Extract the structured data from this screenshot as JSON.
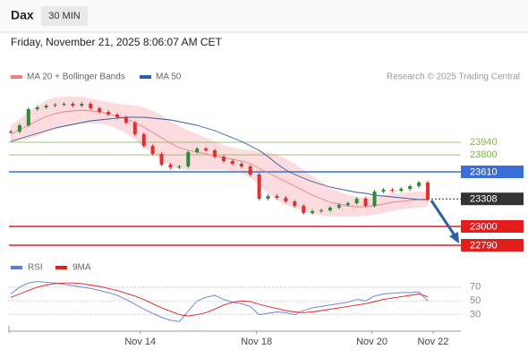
{
  "header": {
    "symbol": "Dax",
    "interval": "30 MIN"
  },
  "chart_data": [
    {
      "type": "candlestick",
      "title": "Friday, November 21, 2025 8:06:07 AM CET",
      "source": "Research © 2025 Trading Central",
      "up_color": "#2e8b3a",
      "down_color": "#e03030",
      "xlim": [
        0,
        47
      ],
      "ylim": [
        22680,
        24530
      ],
      "close": [
        24060,
        24130,
        24310,
        24330,
        24350,
        24360,
        24370,
        24350,
        24370,
        24320,
        24280,
        24250,
        24220,
        24160,
        24030,
        23900,
        23810,
        23690,
        23660,
        23670,
        23830,
        23870,
        23850,
        23780,
        23730,
        23700,
        23670,
        23580,
        23310,
        23340,
        23320,
        23280,
        23230,
        23150,
        23170,
        23180,
        23210,
        23240,
        23260,
        23310,
        23230,
        23390,
        23410,
        23400,
        23420,
        23450,
        23490,
        23300
      ],
      "series": [
        {
          "name": "MA 20 + Bollinger Bands",
          "color": "#f08080",
          "band_color": "#fbd3d6",
          "values": [
            24030,
            24080,
            24130,
            24180,
            24230,
            24260,
            24280,
            24290,
            24300,
            24290,
            24280,
            24260,
            24230,
            24200,
            24160,
            24110,
            24050,
            23990,
            23930,
            23880,
            23850,
            23830,
            23810,
            23790,
            23770,
            23750,
            23730,
            23700,
            23650,
            23600,
            23550,
            23500,
            23450,
            23400,
            23350,
            23310,
            23270,
            23250,
            23230,
            23220,
            23220,
            23230,
            23250,
            23270,
            23280,
            23290,
            23300,
            23310
          ],
          "upper": [
            24130,
            24200,
            24280,
            24350,
            24410,
            24440,
            24450,
            24450,
            24450,
            24430,
            24410,
            24390,
            24370,
            24360,
            24350,
            24330,
            24290,
            24240,
            24180,
            24120,
            24070,
            24030,
            23990,
            23950,
            23910,
            23880,
            23860,
            23850,
            23840,
            23830,
            23800,
            23760,
            23700,
            23630,
            23560,
            23500,
            23430,
            23390,
            23350,
            23330,
            23320,
            23330,
            23350,
            23370,
            23370,
            23380,
            23390,
            23400
          ],
          "lower": [
            23930,
            23960,
            23980,
            24010,
            24050,
            24080,
            24110,
            24130,
            24150,
            24150,
            24150,
            24130,
            24090,
            24040,
            23970,
            23890,
            23810,
            23740,
            23680,
            23640,
            23630,
            23630,
            23630,
            23630,
            23630,
            23620,
            23600,
            23550,
            23460,
            23370,
            23300,
            23240,
            23200,
            23170,
            23140,
            23120,
            23110,
            23110,
            23110,
            23110,
            23120,
            23130,
            23150,
            23170,
            23190,
            23200,
            23210,
            23220
          ]
        },
        {
          "name": "MA 50",
          "color": "#2e5fa3",
          "values": [
            23950,
            23980,
            24010,
            24040,
            24070,
            24100,
            24120,
            24140,
            24160,
            24180,
            24190,
            24200,
            24210,
            24220,
            24220,
            24220,
            24210,
            24200,
            24190,
            24170,
            24150,
            24130,
            24100,
            24070,
            24030,
            23990,
            23950,
            23900,
            23850,
            23780,
            23700,
            23630,
            23580,
            23540,
            23500,
            23470,
            23440,
            23420,
            23400,
            23380,
            23370,
            23350,
            23340,
            23330,
            23320,
            23310,
            23300,
            23300
          ]
        }
      ],
      "levels": [
        {
          "value": 23940,
          "color": "#7fb24a",
          "boxed": false,
          "dashed": false
        },
        {
          "value": 23800,
          "color": "#7fb24a",
          "boxed": false,
          "dashed": false
        },
        {
          "value": 23610,
          "color": "#3b6fd8",
          "boxed": true,
          "dashed": false
        },
        {
          "value": 23308,
          "color": "#333333",
          "boxed": true,
          "dashed": true
        },
        {
          "value": 23000,
          "color": "#e41d1d",
          "boxed": true,
          "dashed": false
        },
        {
          "value": 22790,
          "color": "#e41d1d",
          "boxed": true,
          "dashed": false
        }
      ]
    },
    {
      "type": "line",
      "xlim": [
        0,
        47
      ],
      "ylim": [
        10,
        84
      ],
      "yticks": [
        70,
        50,
        30
      ],
      "grid": true,
      "xticks": [
        {
          "value": 14.6,
          "label": "Nov 14"
        },
        {
          "value": 27.7,
          "label": "Nov 18"
        },
        {
          "value": 40.7,
          "label": "Nov 20"
        },
        {
          "value": 47.6,
          "label": "Nov 22"
        }
      ],
      "series": [
        {
          "name": "RSI",
          "color": "#5b7bd5",
          "values": [
            60,
            70,
            76,
            78,
            77,
            76,
            74,
            72,
            70,
            68,
            65,
            62,
            58,
            52,
            45,
            38,
            32,
            26,
            22,
            20,
            35,
            50,
            55,
            58,
            52,
            48,
            46,
            42,
            30,
            32,
            34,
            33,
            30,
            36,
            40,
            42,
            44,
            46,
            48,
            52,
            50,
            57,
            60,
            61,
            62,
            62,
            63,
            50
          ]
        },
        {
          "name": "9MA",
          "color": "#e41d1d",
          "values": [
            55,
            60,
            65,
            70,
            73,
            75,
            76,
            76,
            75,
            73,
            71,
            68,
            65,
            61,
            57,
            52,
            46,
            40,
            35,
            30,
            28,
            30,
            33,
            38,
            44,
            48,
            50,
            49,
            45,
            42,
            39,
            36,
            34,
            33,
            34,
            36,
            38,
            40,
            42,
            44,
            46,
            49,
            52,
            54,
            56,
            58,
            60,
            56
          ]
        }
      ]
    }
  ]
}
